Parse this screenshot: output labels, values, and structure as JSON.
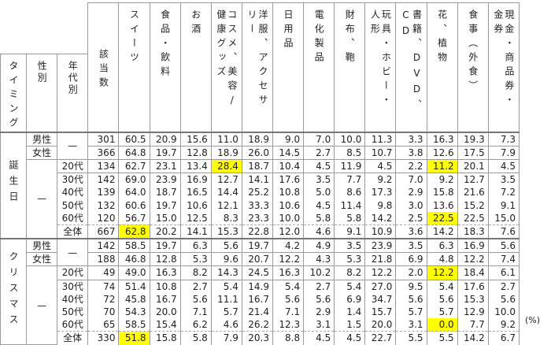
{
  "header": {
    "timing": "タイミング",
    "gender": "性別",
    "age": "年代別",
    "count": "該当数",
    "categories": [
      "スイーツ",
      "食品・飲料",
      "お酒",
      "コスメ、美容/\n健康グッズ",
      "洋服、アクセサ\nリー",
      "日用品",
      "電化製品",
      "財布、鞄",
      "玩具・ホビー・\n人形",
      "書籍、DVD、\nCD",
      "花、植物",
      "食事（外食）",
      "現金・商品券・\n金券"
    ]
  },
  "highlight_color": "#ffff00",
  "unit": "(%)",
  "sections": [
    {
      "timing": "誕生日",
      "rows": [
        {
          "gender": "男性",
          "age": "—",
          "n": "301",
          "values": [
            "60.5",
            "20.9",
            "15.6",
            "11.0",
            "18.9",
            "9.0",
            "7.0",
            "10.0",
            "11.3",
            "3.3",
            "16.3",
            "19.3",
            "7.3"
          ],
          "hl": []
        },
        {
          "gender": "女性",
          "age": "",
          "n": "366",
          "values": [
            "64.8",
            "19.7",
            "12.8",
            "18.9",
            "26.0",
            "14.5",
            "2.7",
            "8.5",
            "10.7",
            "3.8",
            "12.6",
            "17.5",
            "7.9"
          ],
          "hl": []
        },
        {
          "gender": "—",
          "age": "20代",
          "n": "134",
          "values": [
            "62.7",
            "23.1",
            "13.4",
            "28.4",
            "18.7",
            "10.4",
            "4.5",
            "11.9",
            "4.5",
            "2.2",
            "11.2",
            "20.1",
            "4.5"
          ],
          "hl": [
            3,
            10
          ]
        },
        {
          "gender": "",
          "age": "30代",
          "n": "142",
          "values": [
            "69.0",
            "23.9",
            "16.9",
            "12.7",
            "14.1",
            "17.6",
            "3.5",
            "7.7",
            "9.2",
            "7.0",
            "9.2",
            "12.7",
            "3.5"
          ],
          "hl": []
        },
        {
          "gender": "",
          "age": "40代",
          "n": "139",
          "values": [
            "64.0",
            "18.7",
            "16.5",
            "14.4",
            "25.2",
            "10.8",
            "5.0",
            "8.6",
            "17.3",
            "2.9",
            "15.8",
            "21.6",
            "7.2"
          ],
          "hl": []
        },
        {
          "gender": "",
          "age": "50代",
          "n": "132",
          "values": [
            "60.6",
            "19.7",
            "10.6",
            "12.1",
            "33.3",
            "10.6",
            "4.5",
            "11.4",
            "9.8",
            "3.0",
            "13.6",
            "15.2",
            "9.1"
          ],
          "hl": []
        },
        {
          "gender": "",
          "age": "60代",
          "n": "120",
          "values": [
            "56.7",
            "15.0",
            "12.5",
            "8.3",
            "23.3",
            "10.0",
            "5.8",
            "5.8",
            "14.2",
            "2.5",
            "22.5",
            "22.5",
            "15.0"
          ],
          "hl": [
            10
          ]
        },
        {
          "gender": "",
          "age": "全体",
          "n": "667",
          "values": [
            "62.8",
            "20.2",
            "14.1",
            "15.3",
            "22.8",
            "12.0",
            "4.6",
            "9.1",
            "10.9",
            "3.6",
            "14.2",
            "18.3",
            "7.6"
          ],
          "hl": [
            0
          ]
        }
      ]
    },
    {
      "timing": "クリスマス",
      "rows": [
        {
          "gender": "男性",
          "age": "—",
          "n": "142",
          "values": [
            "58.5",
            "19.7",
            "6.3",
            "5.6",
            "19.7",
            "4.2",
            "4.9",
            "3.5",
            "23.9",
            "3.5",
            "6.3",
            "16.9",
            "5.6"
          ],
          "hl": []
        },
        {
          "gender": "女性",
          "age": "",
          "n": "188",
          "values": [
            "46.8",
            "12.8",
            "5.3",
            "9.6",
            "20.7",
            "12.2",
            "4.3",
            "5.3",
            "21.8",
            "6.9",
            "4.8",
            "12.2",
            "7.4"
          ],
          "hl": []
        },
        {
          "gender": "—",
          "age": "20代",
          "n": "49",
          "values": [
            "49.0",
            "16.3",
            "8.2",
            "14.3",
            "24.5",
            "16.3",
            "10.2",
            "8.2",
            "12.2",
            "2.0",
            "12.2",
            "18.4",
            "6.1"
          ],
          "hl": [
            10
          ]
        },
        {
          "gender": "",
          "age": "30代",
          "n": "74",
          "values": [
            "51.4",
            "10.8",
            "2.7",
            "5.4",
            "14.9",
            "5.4",
            "2.7",
            "5.4",
            "27.0",
            "9.5",
            "5.4",
            "17.6",
            "2.7"
          ],
          "hl": []
        },
        {
          "gender": "",
          "age": "40代",
          "n": "72",
          "values": [
            "45.8",
            "16.7",
            "5.6",
            "11.1",
            "16.7",
            "5.6",
            "5.6",
            "6.9",
            "34.7",
            "5.6",
            "5.6",
            "15.3",
            "5.6"
          ],
          "hl": []
        },
        {
          "gender": "",
          "age": "50代",
          "n": "70",
          "values": [
            "54.3",
            "20.0",
            "7.1",
            "5.7",
            "21.4",
            "7.1",
            "2.9",
            "1.4",
            "15.7",
            "5.7",
            "5.7",
            "12.9",
            "10.0"
          ],
          "hl": []
        },
        {
          "gender": "",
          "age": "60代",
          "n": "65",
          "values": [
            "58.5",
            "15.4",
            "6.2",
            "4.6",
            "26.2",
            "12.3",
            "3.1",
            "1.5",
            "20.0",
            "3.1",
            "0.0",
            "7.7",
            "9.2"
          ],
          "hl": [
            10
          ]
        },
        {
          "gender": "",
          "age": "全体",
          "n": "330",
          "values": [
            "51.8",
            "15.8",
            "5.8",
            "7.9",
            "20.3",
            "8.8",
            "4.5",
            "4.5",
            "22.7",
            "5.5",
            "5.5",
            "14.2",
            "6.7"
          ],
          "hl": [
            0
          ]
        }
      ]
    }
  ]
}
